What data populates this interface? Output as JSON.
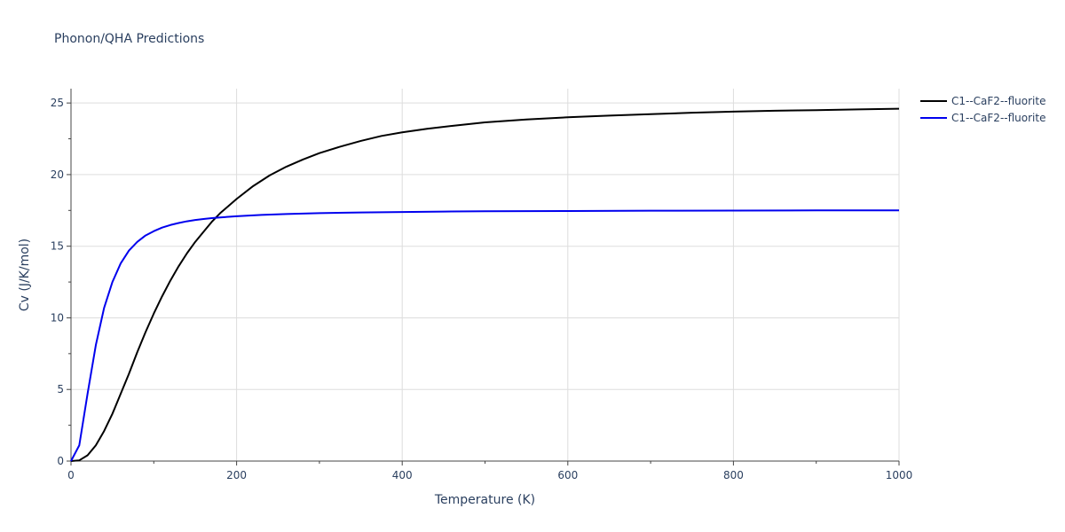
{
  "chart_data": {
    "type": "line",
    "title": "Phonon/QHA Predictions",
    "xlabel": "Temperature (K)",
    "ylabel": "Cv (J/K/mol)",
    "xlim": [
      0,
      1000
    ],
    "ylim": [
      0,
      26
    ],
    "xticks": [
      0,
      200,
      400,
      600,
      800,
      1000
    ],
    "yticks": [
      0,
      5,
      10,
      15,
      20,
      25
    ],
    "grid": true,
    "legend_position": "top-right",
    "series": [
      {
        "name": "C1--CaF2--fluorite",
        "color": "#000000",
        "x": [
          0,
          10,
          20,
          30,
          40,
          50,
          60,
          70,
          80,
          90,
          100,
          110,
          120,
          130,
          140,
          150,
          160,
          170,
          180,
          200,
          220,
          240,
          260,
          280,
          300,
          325,
          350,
          375,
          400,
          430,
          460,
          500,
          550,
          600,
          650,
          700,
          750,
          800,
          850,
          900,
          950,
          1000
        ],
        "y": [
          0,
          0.05,
          0.4,
          1.1,
          2.1,
          3.3,
          4.7,
          6.1,
          7.6,
          9.0,
          10.3,
          11.5,
          12.6,
          13.6,
          14.5,
          15.3,
          16.0,
          16.7,
          17.3,
          18.3,
          19.2,
          19.95,
          20.55,
          21.05,
          21.5,
          21.95,
          22.35,
          22.7,
          22.95,
          23.2,
          23.4,
          23.65,
          23.85,
          24.0,
          24.12,
          24.22,
          24.32,
          24.4,
          24.46,
          24.5,
          24.55,
          24.6
        ]
      },
      {
        "name": "C1--CaF2--fluorite",
        "color": "#0000ee",
        "x": [
          0,
          10,
          20,
          30,
          40,
          50,
          60,
          70,
          80,
          90,
          100,
          110,
          120,
          130,
          140,
          150,
          160,
          170,
          180,
          200,
          230,
          260,
          300,
          350,
          400,
          450,
          500,
          600,
          700,
          800,
          900,
          1000
        ],
        "y": [
          0,
          1.1,
          4.7,
          8.1,
          10.7,
          12.5,
          13.8,
          14.7,
          15.3,
          15.75,
          16.05,
          16.3,
          16.48,
          16.62,
          16.74,
          16.83,
          16.9,
          16.96,
          17.01,
          17.09,
          17.19,
          17.25,
          17.31,
          17.36,
          17.39,
          17.42,
          17.44,
          17.46,
          17.48,
          17.49,
          17.5,
          17.5
        ]
      }
    ]
  }
}
